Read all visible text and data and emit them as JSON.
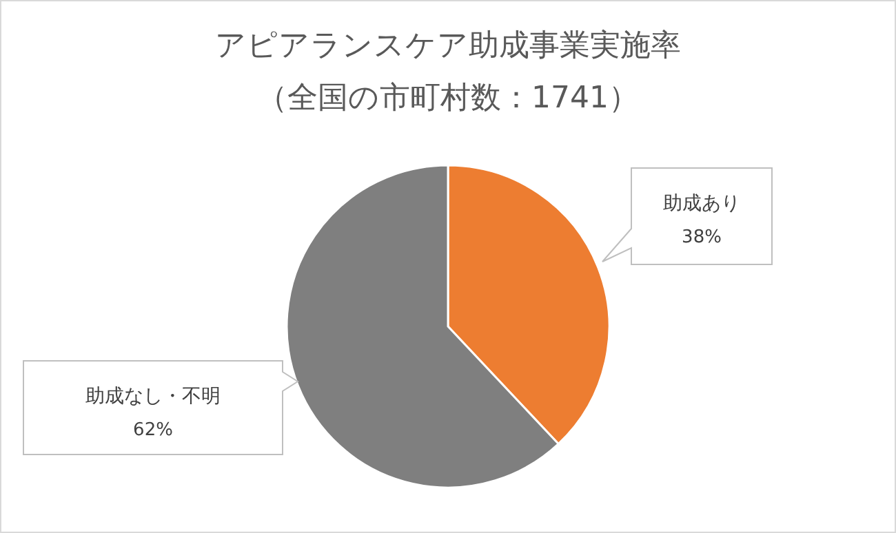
{
  "chart_data": {
    "type": "pie",
    "title": "アピアランスケア助成事業実施率",
    "subtitle": "（全国の市町村数：1741）",
    "categories": [
      "助成あり",
      "助成なし・不明"
    ],
    "values": [
      38,
      62
    ],
    "colors": [
      "#ed7d31",
      "#7f7f7f"
    ],
    "value_labels": [
      "38%",
      "62%"
    ]
  }
}
